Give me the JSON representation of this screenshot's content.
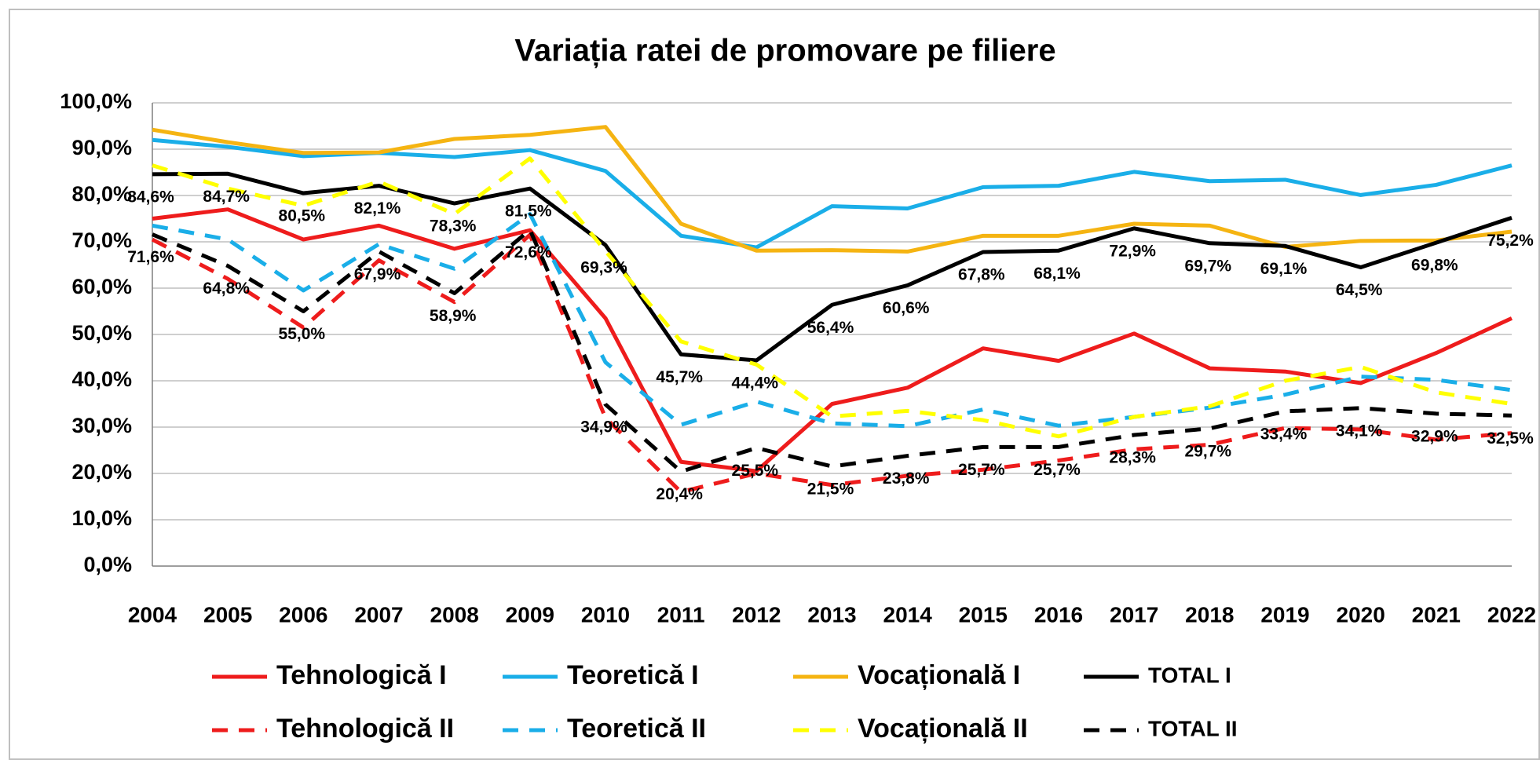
{
  "chart_data": {
    "type": "line",
    "title": "Variația ratei de promovare pe filiere",
    "categories": [
      "2004",
      "2005",
      "2006",
      "2007",
      "2008",
      "2009",
      "2010",
      "2011",
      "2012",
      "2013",
      "2014",
      "2015",
      "2016",
      "2017",
      "2018",
      "2019",
      "2020",
      "2021",
      "2022"
    ],
    "ylim": [
      0,
      100
    ],
    "yticks": [
      {
        "value": 0,
        "label": "0,0%"
      },
      {
        "value": 10,
        "label": "10,0%"
      },
      {
        "value": 20,
        "label": "20,0%"
      },
      {
        "value": 30,
        "label": "30,0%"
      },
      {
        "value": 40,
        "label": "40,0%"
      },
      {
        "value": 50,
        "label": "50,0%"
      },
      {
        "value": 60,
        "label": "60,0%"
      },
      {
        "value": 70,
        "label": "70,0%"
      },
      {
        "value": 80,
        "label": "80,0%"
      },
      {
        "value": 90,
        "label": "90,0%"
      },
      {
        "value": 100,
        "label": "100,0%"
      }
    ],
    "grid": true,
    "series": [
      {
        "name": "Tehnologică I",
        "color": "#ee1c1c",
        "dashed": false,
        "values": [
          75,
          77,
          70.5,
          73.5,
          68.5,
          72.5,
          53.5,
          22.5,
          20.5,
          35,
          38.5,
          47,
          44.3,
          50.2,
          42.7,
          42,
          39.5,
          46,
          53.5
        ]
      },
      {
        "name": "Teoretică I",
        "color": "#1aaee8",
        "dashed": false,
        "values": [
          92,
          90.5,
          88.5,
          89.2,
          88.3,
          89.8,
          85.3,
          71.3,
          68.8,
          77.7,
          77.2,
          81.8,
          82.1,
          85.1,
          83.1,
          83.4,
          80.1,
          82.3,
          86.5
        ]
      },
      {
        "name": "Vocațională I",
        "color": "#f5b412",
        "dashed": false,
        "values": [
          94.2,
          91.5,
          89.2,
          89.3,
          92.2,
          93.1,
          94.8,
          73.9,
          68.1,
          68.2,
          67.9,
          71.3,
          71.3,
          73.9,
          73.5,
          68.9,
          70.2,
          70.3,
          72.2
        ]
      },
      {
        "name": "TOTAL I",
        "color": "#000000",
        "dashed": false,
        "values": [
          84.6,
          84.7,
          80.5,
          82.1,
          78.3,
          81.5,
          69.3,
          45.7,
          44.4,
          56.4,
          60.6,
          67.8,
          68.1,
          72.9,
          69.7,
          69.1,
          64.5,
          69.8,
          75.2
        ],
        "value_labels": [
          "84,6%",
          "84,7%",
          "80,5%",
          "82,1%",
          "78,3%",
          "81,5%",
          "69,3%",
          "45,7%",
          "44,4%",
          "56,4%",
          "60,6%",
          "67,8%",
          "68,1%",
          "72,9%",
          "69,7%",
          "69,1%",
          "64,5%",
          "69,8%",
          "75,2%"
        ]
      },
      {
        "name": "Tehnologică II",
        "color": "#ee1c1c",
        "dashed": true,
        "values": [
          70.5,
          62,
          51.5,
          66,
          57,
          71.5,
          32,
          16,
          20,
          17.5,
          19.5,
          20.8,
          22.8,
          25.2,
          26.2,
          29.8,
          29.5,
          27.3,
          28.7
        ]
      },
      {
        "name": "Teoretică II",
        "color": "#1aaee8",
        "dashed": true,
        "values": [
          73.5,
          70.5,
          59.5,
          69.5,
          64.2,
          76,
          44,
          30.5,
          35.5,
          30.8,
          30.2,
          33.8,
          30.3,
          32.2,
          34.2,
          37,
          40.9,
          40.2,
          38
        ]
      },
      {
        "name": "Vocațională II",
        "color": "#ffff00",
        "dashed": true,
        "values": [
          86.5,
          81.5,
          77.8,
          83,
          76,
          88,
          68,
          48.5,
          43.5,
          32.3,
          33.5,
          31.5,
          28,
          32.2,
          34.5,
          40,
          43,
          37.5,
          35
        ]
      },
      {
        "name": "TOTAL II",
        "color": "#000000",
        "dashed": true,
        "values": [
          71.6,
          64.8,
          55.0,
          67.9,
          58.9,
          72.6,
          34.9,
          20.4,
          25.5,
          21.5,
          23.8,
          25.7,
          25.7,
          28.3,
          29.7,
          33.4,
          34.1,
          32.9,
          32.5
        ],
        "value_labels": [
          "71,6%",
          "64,8%",
          "55,0%",
          "67,9%",
          "58,9%",
          "72,6%",
          "34,9%",
          "20,4%",
          "25,5%",
          "21,5%",
          "23,8%",
          "25,7%",
          "25,7%",
          "28,3%",
          "29,7%",
          "33,4%",
          "34,1%",
          "32,9%",
          "32,5%"
        ]
      }
    ]
  }
}
